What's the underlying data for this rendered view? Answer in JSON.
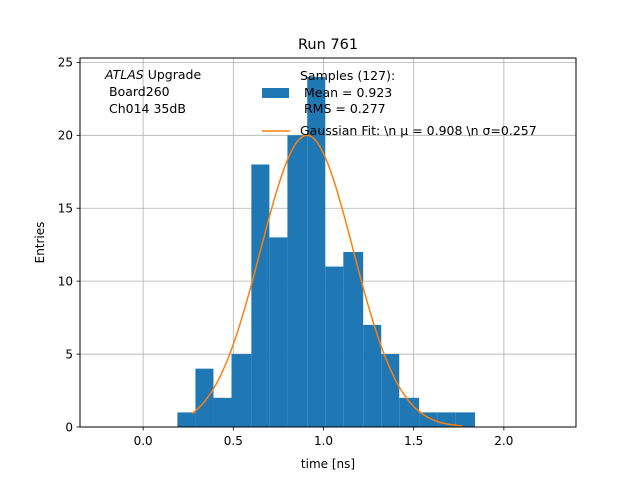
{
  "chart_data": {
    "type": "bar",
    "title": "Run 761",
    "xlabel": "time [ns]",
    "ylabel": "Entries",
    "xlim": [
      -0.35,
      2.4
    ],
    "ylim": [
      0,
      25.3
    ],
    "xticks": [
      0.0,
      0.5,
      1.0,
      1.5,
      2.0
    ],
    "xtick_labels": [
      "0.0",
      "0.5",
      "1.0",
      "1.5",
      "2.0"
    ],
    "yticks": [
      0,
      5,
      10,
      15,
      20,
      25
    ],
    "ytick_labels": [
      "0",
      "5",
      "10",
      "15",
      "20",
      "25"
    ],
    "grid": true,
    "legend_position": "top-right",
    "annotation": {
      "line1_italic": "ATLAS",
      "line1_rest": " Upgrade",
      "line2": "Board260",
      "line3": "Ch014 35dB"
    },
    "histogram": {
      "name_lines": [
        "Samples (127):",
        "Mean = 0.923",
        "RMS = 0.277"
      ],
      "color": "#1f77b4",
      "bins": [
        {
          "x0": 0.19,
          "x1": 0.29,
          "count": 1
        },
        {
          "x0": 0.29,
          "x1": 0.39,
          "count": 4
        },
        {
          "x0": 0.39,
          "x1": 0.49,
          "count": 2
        },
        {
          "x0": 0.49,
          "x1": 0.6,
          "count": 5
        },
        {
          "x0": 0.6,
          "x1": 0.7,
          "count": 18
        },
        {
          "x0": 0.7,
          "x1": 0.8,
          "count": 13
        },
        {
          "x0": 0.8,
          "x1": 0.91,
          "count": 20
        },
        {
          "x0": 0.91,
          "x1": 1.01,
          "count": 24
        },
        {
          "x0": 1.01,
          "x1": 1.11,
          "count": 11
        },
        {
          "x0": 1.11,
          "x1": 1.22,
          "count": 12
        },
        {
          "x0": 1.22,
          "x1": 1.32,
          "count": 7
        },
        {
          "x0": 1.32,
          "x1": 1.42,
          "count": 5
        },
        {
          "x0": 1.42,
          "x1": 1.53,
          "count": 2
        },
        {
          "x0": 1.53,
          "x1": 1.63,
          "count": 1
        },
        {
          "x0": 1.63,
          "x1": 1.73,
          "count": 1
        },
        {
          "x0": 1.73,
          "x1": 1.84,
          "count": 1
        }
      ]
    },
    "fit": {
      "name": "Gaussian Fit: \\n μ = 0.908 \\n σ=0.257",
      "color": "#ff7f0e",
      "mu": 0.908,
      "sigma": 0.257,
      "amplitude": 20.0,
      "x_range": [
        0.27,
        1.77
      ]
    }
  }
}
